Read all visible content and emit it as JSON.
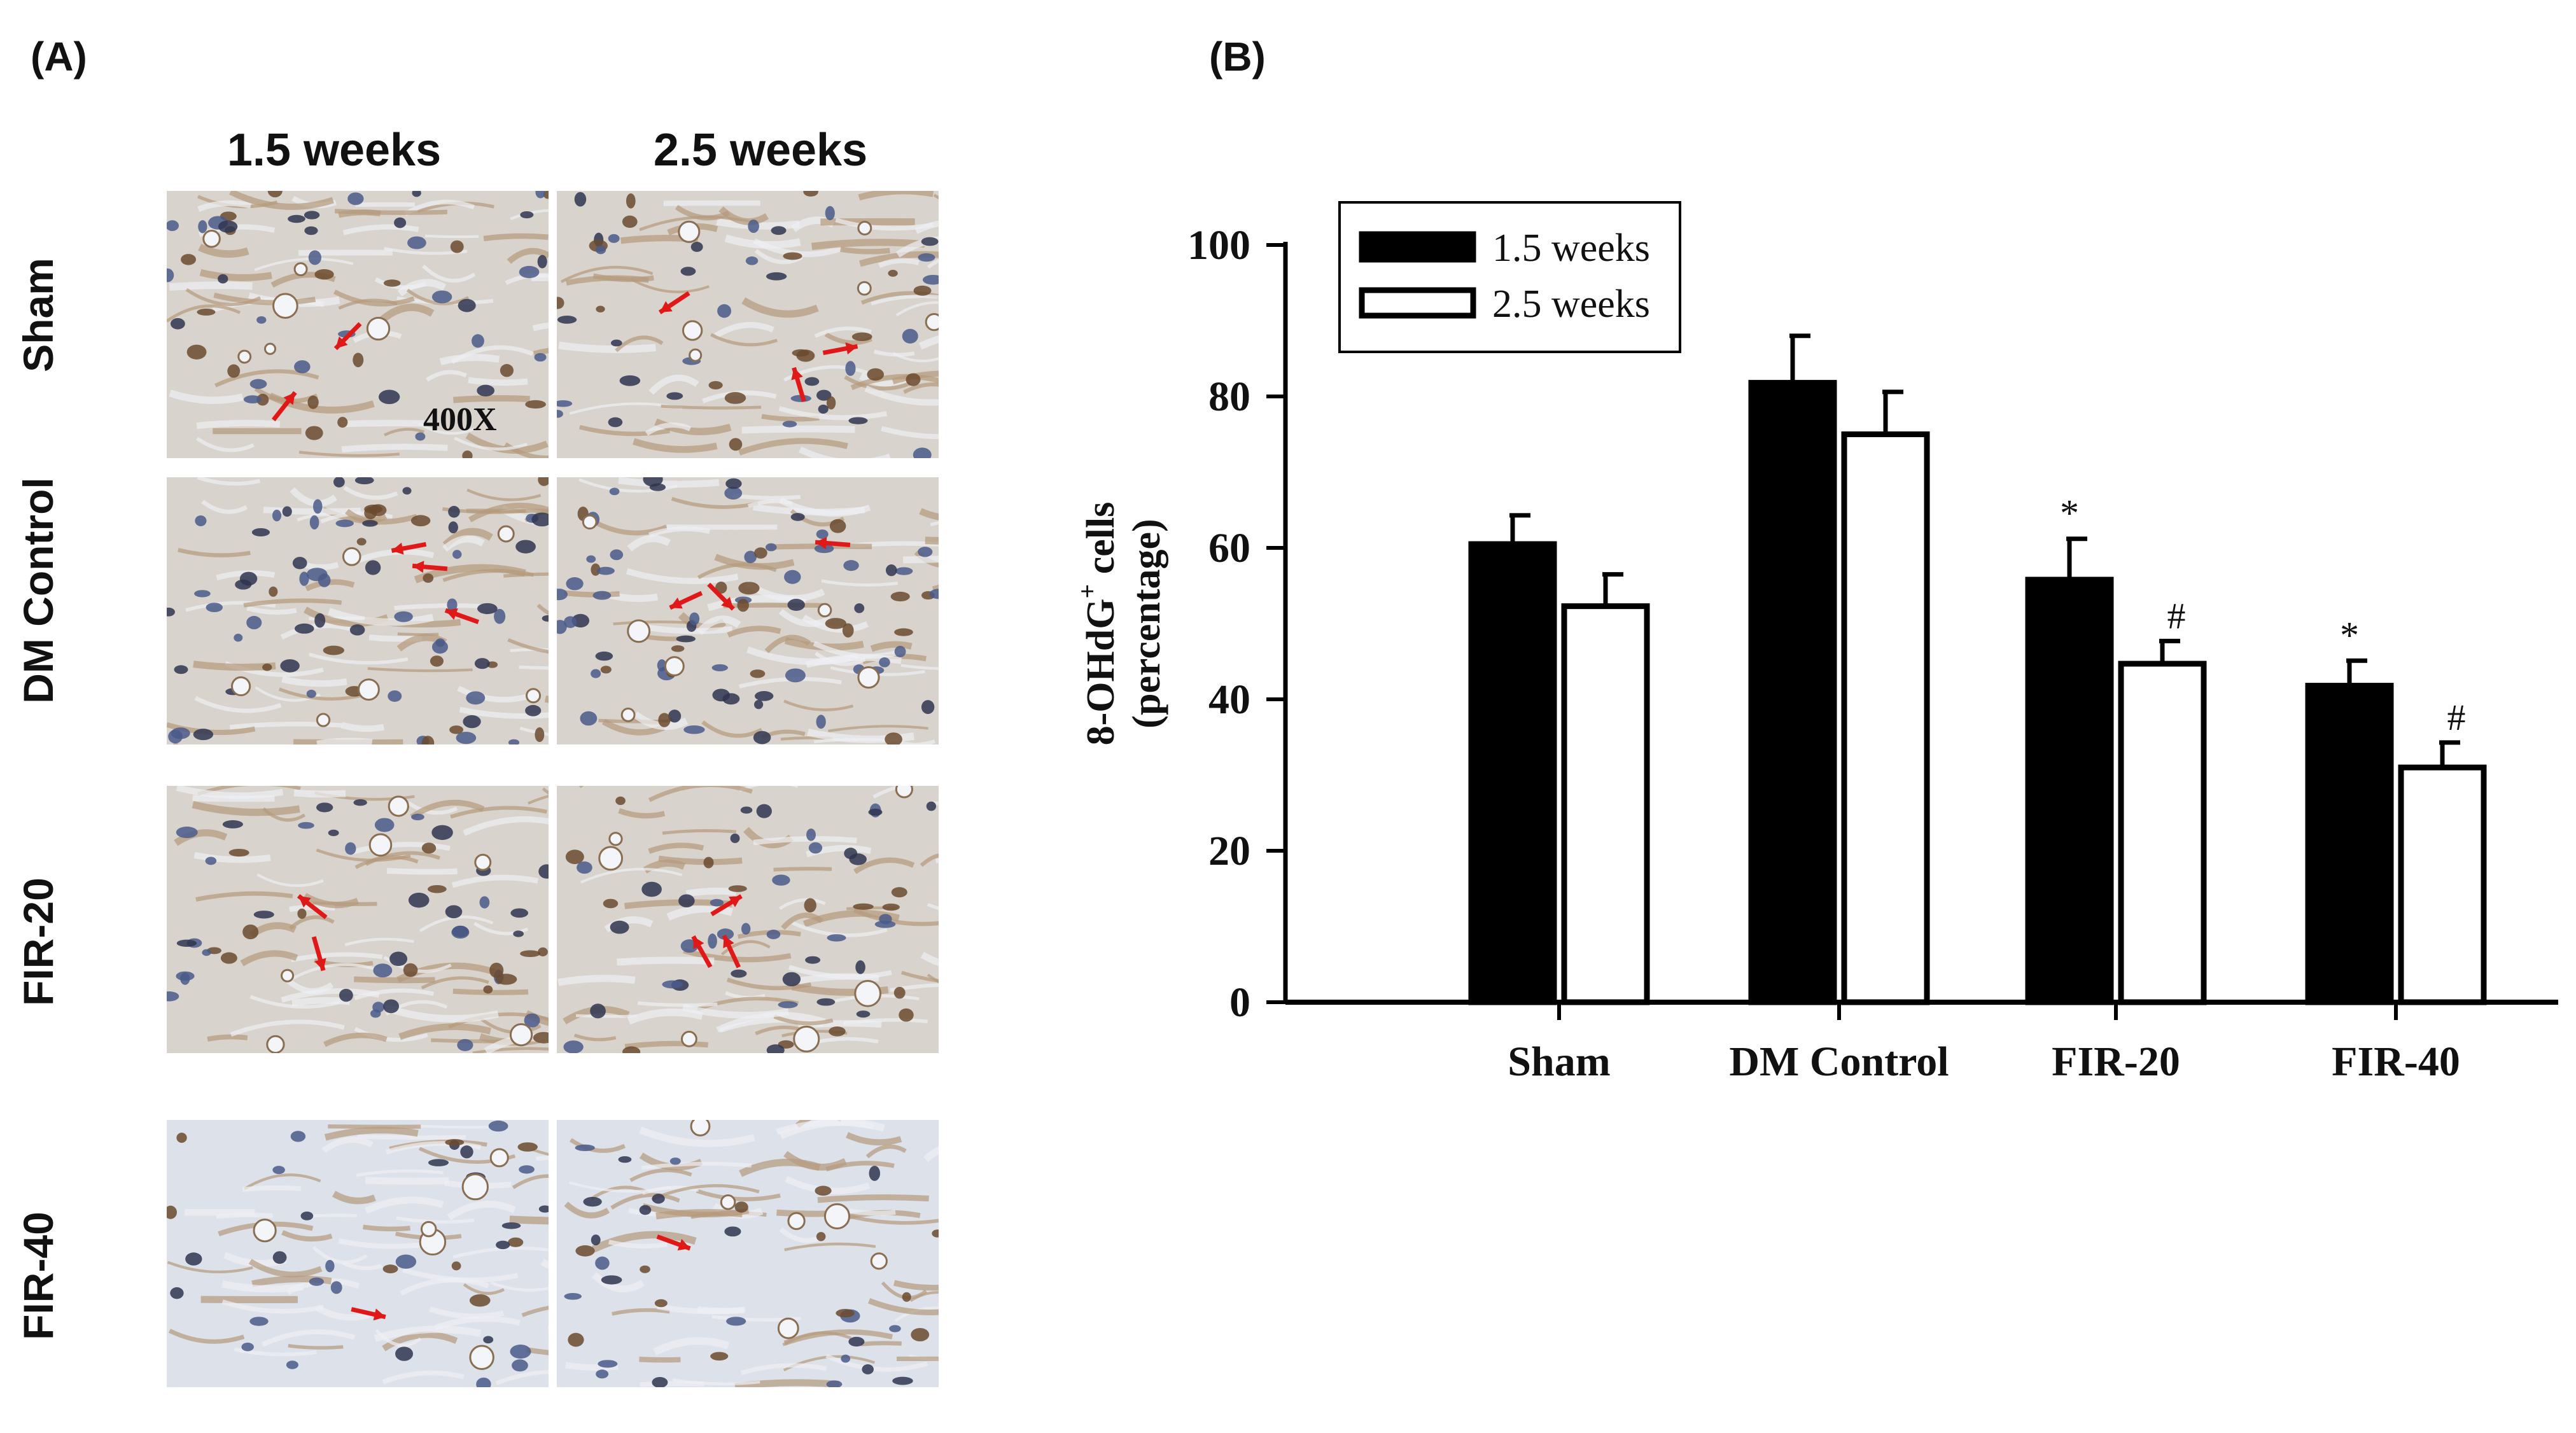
{
  "panel_a": {
    "letter": "(A)",
    "columns": [
      "1.5 weeks",
      "2.5 weeks"
    ],
    "rows": [
      "Sham",
      "DM Control",
      "FIR-20",
      "FIR-40"
    ],
    "magnification": "400X"
  },
  "panel_b": {
    "letter": "(B)"
  },
  "chart_data": {
    "type": "bar",
    "categories": [
      "Sham",
      "DM Control",
      "FIR-20",
      "FIR-40"
    ],
    "series": [
      {
        "name": "1.5 weeks",
        "values": [
          60.5,
          81.8,
          55.8,
          41.8
        ],
        "errors": [
          3.8,
          6.2,
          5.4,
          3.3
        ],
        "fill": "#000000",
        "markers": [
          "",
          "",
          "*",
          "*"
        ]
      },
      {
        "name": "2.5 weeks",
        "values": [
          52.3,
          75.0,
          44.7,
          31.0
        ],
        "errors": [
          4.2,
          5.6,
          3.0,
          3.3
        ],
        "fill": "#ffffff",
        "markers": [
          "",
          "",
          "#",
          "#"
        ]
      }
    ],
    "ylabel_line1": "8-OHdG",
    "ylabel_sup": "+",
    "ylabel_line1_suffix": " cells",
    "ylabel_line2": "(percentage)",
    "ylim": [
      0,
      100
    ],
    "yticks": [
      0,
      20,
      40,
      60,
      80,
      100
    ],
    "legend_position": "top-left",
    "grid": false
  }
}
